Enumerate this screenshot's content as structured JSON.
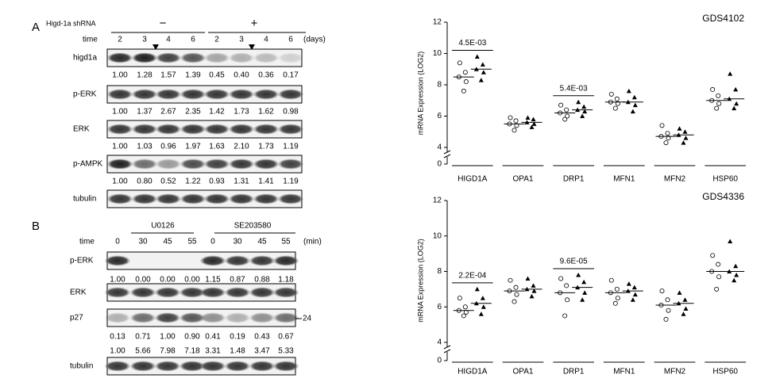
{
  "panel_a": {
    "label": "A",
    "shrna_label": "Higd-1a shRNA",
    "minus": "−",
    "plus": "+",
    "time_label": "time",
    "times": [
      "2",
      "3",
      "4",
      "6",
      "2",
      "3",
      "4",
      "6"
    ],
    "unit": "(days)",
    "rows": [
      {
        "name": "higd1a",
        "values": [
          "1.00",
          "1.28",
          "1.57",
          "1.39",
          "0.45",
          "0.40",
          "0.36",
          "0.17"
        ]
      },
      {
        "name": "p-ERK",
        "values": [
          "1.00",
          "1.37",
          "2.67",
          "2.35",
          "1.42",
          "1.73",
          "1.62",
          "0.98"
        ]
      },
      {
        "name": "ERK",
        "values": [
          "1.00",
          "1.03",
          "0.96",
          "1.97",
          "1.63",
          "2.10",
          "1.73",
          "1.19"
        ]
      },
      {
        "name": "p-AMPK",
        "values": [
          "1.00",
          "0.80",
          "0.52",
          "1.22",
          "0.93",
          "1.31",
          "1.41",
          "1.19"
        ]
      },
      {
        "name": "tubulin"
      }
    ]
  },
  "panel_b": {
    "label": "B",
    "treatments": [
      "U0126",
      "SE203580"
    ],
    "time_label": "time",
    "times": [
      "0",
      "30",
      "45",
      "55",
      "0",
      "30",
      "45",
      "55"
    ],
    "unit": "(min)",
    "marker": "24",
    "rows": [
      {
        "name": "p-ERK",
        "values": [
          [
            "1.00",
            "0.00",
            "0.00",
            "0.00",
            "1.15",
            "0.87",
            "0.88",
            "1.18"
          ]
        ]
      },
      {
        "name": "ERK"
      },
      {
        "name": "p27",
        "values": [
          [
            "0.13",
            "0.71",
            "1.00",
            "0.90",
            "0.41",
            "0.19",
            "0.43",
            "0.67"
          ],
          [
            "1.00",
            "5.66",
            "7.98",
            "7.18",
            "3.31",
            "1.48",
            "3.47",
            "5.33"
          ]
        ]
      },
      {
        "name": "tubulin"
      }
    ]
  },
  "chart_data": [
    {
      "type": "scatter",
      "title": "GDS4102",
      "ylabel": "mRNA Expression (LOG2)",
      "categories": [
        "HIGD1A",
        "OPA1",
        "DRP1",
        "MFN1",
        "MFN2",
        "HSP60"
      ],
      "ylim": [
        4,
        12
      ],
      "yticks": [
        4,
        6,
        8,
        10,
        12
      ],
      "y_break_tick": 0,
      "annotations": [
        {
          "text": "4.5E-03",
          "category": 0
        },
        {
          "text": "5.4E-03",
          "category": 2
        }
      ],
      "series": [
        {
          "marker": "open",
          "color": "#000000",
          "values": [
            8.5,
            5.5,
            6.2,
            6.9,
            4.7,
            7.0
          ],
          "points": [
            [
              7.6,
              8.2,
              8.5,
              8.8,
              9.4
            ],
            [
              5.1,
              5.4,
              5.5,
              5.7,
              5.9
            ],
            [
              5.8,
              6.0,
              6.2,
              6.4,
              6.7
            ],
            [
              6.5,
              6.8,
              6.9,
              7.1,
              7.4
            ],
            [
              4.3,
              4.6,
              4.7,
              4.9,
              5.4
            ],
            [
              6.5,
              6.8,
              7.0,
              7.3,
              7.7
            ]
          ]
        },
        {
          "marker": "filled",
          "color": "#000000",
          "values": [
            9.0,
            5.6,
            6.4,
            6.9,
            4.8,
            7.1
          ],
          "points": [
            [
              8.3,
              8.8,
              9.0,
              9.3,
              9.8
            ],
            [
              5.3,
              5.5,
              5.6,
              5.8,
              5.9
            ],
            [
              6.0,
              6.3,
              6.4,
              6.6,
              6.9
            ],
            [
              6.3,
              6.7,
              6.9,
              7.2,
              7.6
            ],
            [
              4.3,
              4.6,
              4.8,
              5.0,
              5.2
            ],
            [
              6.5,
              6.8,
              7.1,
              7.7,
              8.7
            ]
          ]
        }
      ]
    },
    {
      "type": "scatter",
      "title": "GDS4336",
      "ylabel": "mRNA Expression (LOG2)",
      "categories": [
        "HIGD1A",
        "OPA1",
        "DRP1",
        "MFN1",
        "MFN2",
        "HSP60"
      ],
      "ylim": [
        4,
        12
      ],
      "yticks": [
        4,
        6,
        8,
        10,
        12
      ],
      "y_break_tick": 0,
      "annotations": [
        {
          "text": "2.2E-04",
          "category": 0
        },
        {
          "text": "9.6E-05",
          "category": 2
        }
      ],
      "series": [
        {
          "marker": "open",
          "color": "#000000",
          "values": [
            5.8,
            6.9,
            6.8,
            6.8,
            6.1,
            8.0
          ],
          "points": [
            [
              5.5,
              5.7,
              5.8,
              6.0,
              6.5
            ],
            [
              6.3,
              6.7,
              6.9,
              7.1,
              7.5
            ],
            [
              5.5,
              6.4,
              6.8,
              7.2,
              7.6
            ],
            [
              6.2,
              6.5,
              6.8,
              7.0,
              7.5
            ],
            [
              5.3,
              5.8,
              6.1,
              6.4,
              6.9
            ],
            [
              7.0,
              7.7,
              8.0,
              8.4,
              8.9
            ]
          ]
        },
        {
          "marker": "filled",
          "color": "#000000",
          "values": [
            6.2,
            7.0,
            7.1,
            6.9,
            6.2,
            8.0
          ],
          "points": [
            [
              5.6,
              6.0,
              6.2,
              6.5,
              7.0
            ],
            [
              6.6,
              6.9,
              7.0,
              7.2,
              7.6
            ],
            [
              6.4,
              6.8,
              7.1,
              7.4,
              7.8
            ],
            [
              6.4,
              6.7,
              6.9,
              7.1,
              7.3
            ],
            [
              5.6,
              5.9,
              6.2,
              6.4,
              6.8
            ],
            [
              7.5,
              7.8,
              8.0,
              8.3,
              9.7
            ]
          ]
        }
      ]
    }
  ]
}
